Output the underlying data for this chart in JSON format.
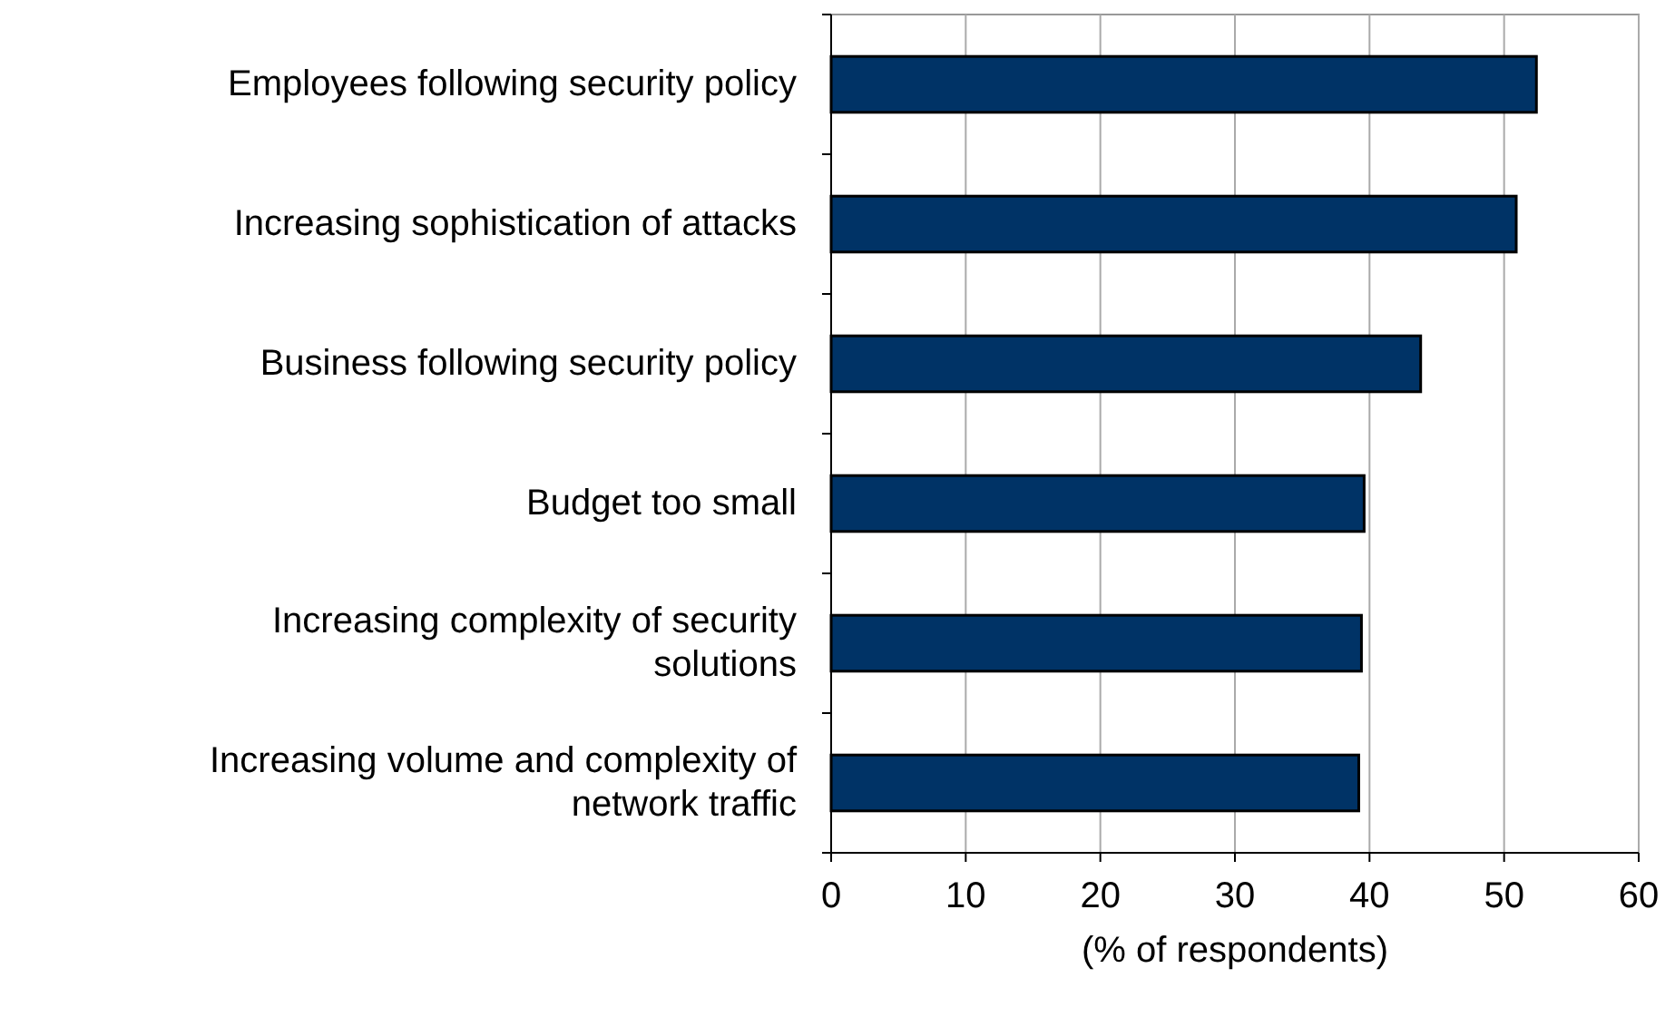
{
  "chart_data": {
    "type": "bar",
    "orientation": "horizontal",
    "xlabel": "(% of respondents)",
    "categories": [
      "Employees following security policy",
      "Increasing sophistication of attacks",
      "Business following security policy",
      "Budget too small",
      "Increasing complexity of security solutions",
      "Increasing volume and complexity of network traffic"
    ],
    "values": [
      52.4,
      50.9,
      43.8,
      39.6,
      39.4,
      39.2
    ],
    "color": "#003366",
    "xlim": [
      0,
      60
    ],
    "xticks": [
      0,
      10,
      20,
      30,
      40,
      50,
      60
    ],
    "grid": "x"
  }
}
